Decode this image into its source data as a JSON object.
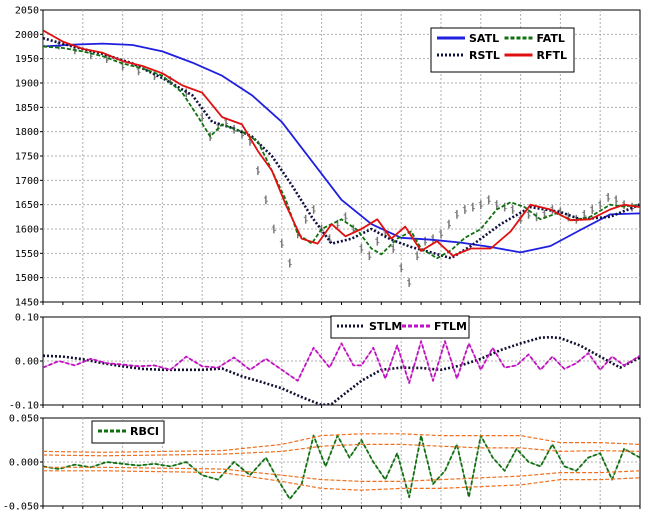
{
  "chart_data": [
    {
      "type": "line",
      "panel": "price",
      "ylim": [
        1450,
        2050
      ],
      "yticks": [
        1450,
        1500,
        1550,
        1600,
        1650,
        1700,
        1750,
        1800,
        1850,
        1900,
        1950,
        2000,
        2050
      ],
      "ytick_labels": [
        "1450",
        "1500",
        "1550",
        "1600",
        "1650",
        "1700",
        "1750",
        "1800",
        "1850",
        "1900",
        "1950",
        "2000",
        "2050"
      ],
      "grid": true,
      "legend": "top-right",
      "x_count": 300,
      "series": [
        {
          "name": "SATL",
          "color": "#1f1fe0",
          "style": "solid",
          "x": [
            0,
            15,
            30,
            45,
            60,
            75,
            90,
            105,
            120,
            135,
            150,
            165,
            180,
            195,
            210,
            225,
            240,
            255,
            270,
            285,
            300
          ],
          "values": [
            1975,
            1979,
            1981,
            1978,
            1965,
            1942,
            1915,
            1875,
            1820,
            1740,
            1660,
            1610,
            1582,
            1578,
            1572,
            1563,
            1552,
            1565,
            1598,
            1630,
            1632
          ]
        },
        {
          "name": "RSTL",
          "color": "#101040",
          "style": "dotted",
          "x": [
            0,
            15,
            30,
            45,
            60,
            75,
            85,
            95,
            105,
            115,
            125,
            135,
            145,
            155,
            165,
            175,
            185,
            195,
            205,
            215,
            230,
            245,
            260,
            270,
            285,
            300
          ],
          "values": [
            1992,
            1975,
            1960,
            1940,
            1910,
            1875,
            1820,
            1808,
            1790,
            1750,
            1690,
            1625,
            1570,
            1580,
            1600,
            1578,
            1563,
            1552,
            1540,
            1565,
            1610,
            1645,
            1635,
            1620,
            1625,
            1650
          ]
        },
        {
          "name": "FATL",
          "color": "#107010",
          "style": "dashed",
          "x": [
            0,
            10,
            20,
            30,
            40,
            50,
            60,
            70,
            78,
            84,
            90,
            100,
            108,
            115,
            122,
            128,
            135,
            140,
            150,
            158,
            165,
            170,
            178,
            185,
            190,
            198,
            205,
            212,
            220,
            228,
            235,
            242,
            250,
            258,
            266,
            275,
            285,
            292,
            300
          ],
          "values": [
            1975,
            1972,
            1965,
            1955,
            1940,
            1930,
            1915,
            1880,
            1830,
            1790,
            1815,
            1800,
            1780,
            1720,
            1660,
            1590,
            1570,
            1600,
            1620,
            1598,
            1560,
            1548,
            1580,
            1595,
            1560,
            1540,
            1556,
            1582,
            1600,
            1640,
            1655,
            1645,
            1620,
            1632,
            1618,
            1625,
            1650,
            1646,
            1650
          ]
        },
        {
          "name": "RFTL",
          "color": "#e01010",
          "style": "solid",
          "x": [
            0,
            10,
            20,
            30,
            40,
            50,
            60,
            70,
            80,
            90,
            100,
            108,
            115,
            122,
            130,
            138,
            145,
            152,
            160,
            168,
            175,
            182,
            190,
            198,
            206,
            215,
            225,
            235,
            245,
            255,
            265,
            275,
            285,
            292,
            300
          ],
          "values": [
            2008,
            1985,
            1970,
            1962,
            1945,
            1935,
            1920,
            1895,
            1880,
            1830,
            1815,
            1760,
            1720,
            1650,
            1580,
            1570,
            1610,
            1585,
            1600,
            1620,
            1580,
            1605,
            1555,
            1575,
            1545,
            1560,
            1560,
            1595,
            1650,
            1640,
            1618,
            1620,
            1640,
            1650,
            1645
          ]
        }
      ],
      "bars": {
        "type": "ohlc",
        "color": "#7a7a7a",
        "x": [
          0,
          8,
          16,
          24,
          32,
          40,
          48,
          56,
          64,
          72,
          80,
          84,
          88,
          92,
          96,
          100,
          104,
          108,
          112,
          116,
          120,
          124,
          128,
          132,
          136,
          140,
          144,
          148,
          152,
          156,
          160,
          164,
          168,
          172,
          176,
          180,
          184,
          188,
          192,
          196,
          200,
          204,
          208,
          212,
          216,
          220,
          224,
          228,
          232,
          236,
          240,
          244,
          248,
          252,
          256,
          260,
          264,
          268,
          272,
          276,
          280,
          284,
          288,
          292,
          296,
          300
        ],
        "values": [
          1980,
          1978,
          1968,
          1958,
          1950,
          1935,
          1925,
          1915,
          1905,
          1880,
          1830,
          1790,
          1810,
          1820,
          1805,
          1795,
          1780,
          1720,
          1660,
          1600,
          1570,
          1530,
          1590,
          1620,
          1640,
          1600,
          1580,
          1610,
          1625,
          1600,
          1560,
          1545,
          1575,
          1590,
          1560,
          1520,
          1490,
          1545,
          1575,
          1580,
          1590,
          1610,
          1630,
          1640,
          1645,
          1650,
          1660,
          1650,
          1645,
          1640,
          1620,
          1630,
          1625,
          1630,
          1640,
          1635,
          1625,
          1620,
          1630,
          1640,
          1650,
          1665,
          1660,
          1650,
          1645,
          1648
        ],
        "range": 18
      }
    },
    {
      "type": "line",
      "panel": "stlm_ftlm",
      "ylim": [
        -0.1,
        0.1
      ],
      "yticks": [
        -0.1,
        0.0,
        0.1
      ],
      "ytick_labels": [
        "-0.10",
        "0.00",
        "0.10"
      ],
      "grid": true,
      "legend": "top-center",
      "x_count": 300,
      "series": [
        {
          "name": "STLM",
          "color": "#101030",
          "style": "dotted",
          "x": [
            0,
            10,
            20,
            30,
            40,
            50,
            60,
            70,
            80,
            90,
            100,
            110,
            120,
            130,
            140,
            145,
            150,
            160,
            170,
            180,
            190,
            200,
            210,
            220,
            230,
            240,
            250,
            255,
            260,
            270,
            280,
            290,
            300
          ],
          "values": [
            0.012,
            0.01,
            0.004,
            -0.005,
            -0.012,
            -0.018,
            -0.02,
            -0.02,
            -0.02,
            -0.017,
            -0.035,
            -0.048,
            -0.062,
            -0.082,
            -0.1,
            -0.098,
            -0.08,
            -0.045,
            -0.02,
            -0.015,
            -0.016,
            -0.02,
            -0.01,
            0.005,
            0.025,
            0.04,
            0.053,
            0.054,
            0.052,
            0.035,
            0.01,
            -0.015,
            0.008
          ]
        },
        {
          "name": "FTLM",
          "color": "#c010c0",
          "style": "dashed",
          "x": [
            0,
            8,
            16,
            24,
            32,
            40,
            48,
            56,
            64,
            72,
            80,
            88,
            96,
            104,
            112,
            120,
            128,
            136,
            144,
            150,
            156,
            160,
            166,
            172,
            178,
            184,
            190,
            196,
            202,
            208,
            214,
            220,
            226,
            232,
            238,
            244,
            250,
            256,
            262,
            268,
            274,
            280,
            286,
            292,
            300
          ],
          "values": [
            -0.015,
            0.0,
            -0.01,
            0.005,
            -0.005,
            -0.008,
            -0.012,
            -0.01,
            -0.02,
            0.01,
            -0.012,
            -0.015,
            0.008,
            -0.02,
            0.005,
            -0.02,
            -0.045,
            0.03,
            -0.015,
            0.04,
            -0.01,
            -0.01,
            0.03,
            -0.04,
            0.035,
            -0.05,
            0.045,
            -0.045,
            0.045,
            -0.04,
            0.04,
            -0.02,
            0.03,
            -0.015,
            -0.01,
            0.015,
            -0.02,
            0.01,
            -0.018,
            -0.005,
            0.018,
            -0.02,
            0.01,
            -0.01,
            0.012
          ]
        }
      ]
    },
    {
      "type": "line",
      "panel": "rbci",
      "ylim": [
        -0.05,
        0.05
      ],
      "yticks": [
        -0.05,
        0.0,
        0.05
      ],
      "ytick_labels": [
        "-0.050",
        "0.000",
        "0.050"
      ],
      "grid": true,
      "legend": "top-left",
      "x_count": 300,
      "series": [
        {
          "name": "RBCI",
          "color": "#107010",
          "style": "dashed",
          "x": [
            0,
            8,
            16,
            24,
            32,
            40,
            48,
            56,
            64,
            72,
            80,
            88,
            96,
            104,
            112,
            118,
            124,
            130,
            136,
            142,
            148,
            154,
            160,
            166,
            172,
            178,
            184,
            190,
            196,
            202,
            208,
            214,
            220,
            226,
            232,
            238,
            244,
            250,
            256,
            262,
            268,
            274,
            280,
            286,
            292,
            300
          ],
          "values": [
            -0.005,
            -0.008,
            -0.003,
            -0.006,
            0.0,
            -0.002,
            -0.004,
            -0.002,
            -0.005,
            0.0,
            -0.015,
            -0.02,
            0.0,
            -0.015,
            0.005,
            -0.02,
            -0.042,
            -0.025,
            0.03,
            -0.005,
            0.03,
            0.005,
            0.025,
            0.0,
            -0.02,
            0.01,
            -0.04,
            0.03,
            -0.025,
            -0.01,
            0.02,
            -0.04,
            0.03,
            0.005,
            -0.01,
            0.015,
            0.0,
            -0.005,
            0.02,
            -0.005,
            -0.01,
            0.005,
            0.01,
            -0.02,
            0.015,
            0.005
          ]
        },
        {
          "name": "",
          "color": "#f07020",
          "style": "dashed",
          "band": true,
          "x": [
            0,
            30,
            60,
            90,
            120,
            140,
            160,
            180,
            200,
            220,
            240,
            260,
            280,
            300
          ],
          "upper2": [
            0.012,
            0.011,
            0.012,
            0.013,
            0.02,
            0.03,
            0.032,
            0.032,
            0.03,
            0.03,
            0.03,
            0.022,
            0.022,
            0.02
          ],
          "upper1": [
            0.008,
            0.007,
            0.008,
            0.009,
            0.012,
            0.018,
            0.02,
            0.02,
            0.018,
            0.016,
            0.016,
            0.012,
            0.013,
            0.012
          ],
          "lower1": [
            -0.006,
            -0.006,
            -0.007,
            -0.008,
            -0.015,
            -0.02,
            -0.022,
            -0.022,
            -0.02,
            -0.018,
            -0.016,
            -0.012,
            -0.012,
            -0.01
          ],
          "lower2": [
            -0.01,
            -0.01,
            -0.011,
            -0.012,
            -0.022,
            -0.03,
            -0.032,
            -0.03,
            -0.03,
            -0.028,
            -0.026,
            -0.02,
            -0.02,
            -0.018
          ]
        }
      ]
    }
  ]
}
